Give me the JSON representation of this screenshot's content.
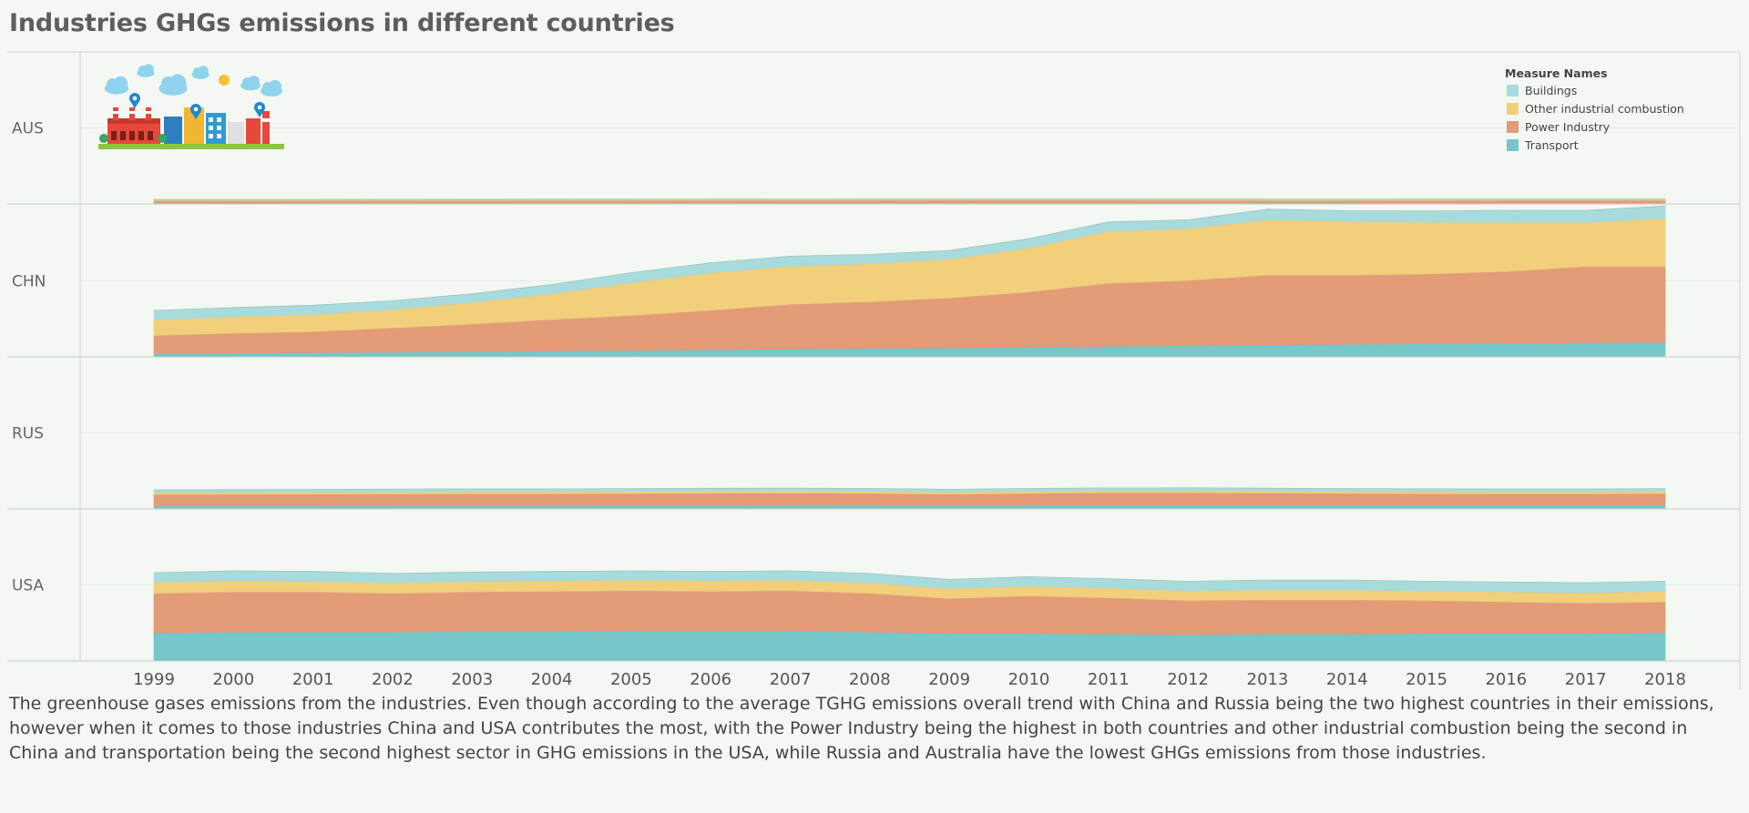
{
  "page": {
    "title": "Industries GHGs emissions in different countries",
    "caption": "The greenhouse gases emissions from the industries. Even though according to the average TGHG emissions overall trend with China and Russia being the two highest countries in their emissions, however when it comes to those industries China and USA contributes the most, with the Power Industry being the highest in both countries and other industrial combustion being the second in China and transportation being the second highest sector in GHG emissions in the USA, while Russia and Australia have the lowest GHGs emissions from those industries."
  },
  "illustration": {
    "icon": "factory-illustration-icon"
  },
  "chart_data": {
    "type": "area",
    "stacked": true,
    "x": [
      1999,
      2000,
      2001,
      2002,
      2003,
      2004,
      2005,
      2006,
      2007,
      2008,
      2009,
      2010,
      2011,
      2012,
      2013,
      2014,
      2015,
      2016,
      2017,
      2018
    ],
    "rows": [
      "AUS",
      "CHN",
      "RUS",
      "USA"
    ],
    "ylim": [
      0,
      11000
    ],
    "grid": true,
    "legend": {
      "title": "Measure Names",
      "placement": "top-right",
      "items": [
        "Buildings",
        "Other industrial combustion",
        "Power Industry",
        "Transport"
      ]
    },
    "colors": {
      "Buildings": "#a8dcdc",
      "Other industrial combustion": "#f1cf7b",
      "Power Industry": "#e39b78",
      "Transport": "#76c7ca"
    },
    "panels": [
      {
        "row": "AUS",
        "series": [
          {
            "name": "Transport",
            "values": [
              70,
              72,
              73,
              75,
              77,
              79,
              80,
              82,
              84,
              85,
              86,
              87,
              89,
              90,
              92,
              93,
              94,
              96,
              98,
              100
            ]
          },
          {
            "name": "Power Industry",
            "values": [
              170,
              172,
              175,
              178,
              180,
              183,
              186,
              189,
              190,
              192,
              195,
              195,
              192,
              188,
              180,
              176,
              178,
              180,
              178,
              175
            ]
          },
          {
            "name": "Other industrial combustion",
            "values": [
              60,
              61,
              62,
              62,
              63,
              64,
              65,
              65,
              66,
              67,
              67,
              68,
              69,
              69,
              70,
              70,
              71,
              71,
              72,
              72
            ]
          },
          {
            "name": "Buildings",
            "values": [
              30,
              30,
              30,
              31,
              31,
              31,
              31,
              32,
              32,
              32,
              32,
              32,
              33,
              33,
              33,
              33,
              33,
              34,
              34,
              34
            ]
          }
        ]
      },
      {
        "row": "CHN",
        "series": [
          {
            "name": "Transport",
            "values": [
              280,
              300,
              320,
              360,
              400,
              450,
              500,
              550,
              600,
              640,
              680,
              740,
              800,
              860,
              920,
              960,
              1000,
              1040,
              1080,
              1120
            ]
          },
          {
            "name": "Power Industry",
            "values": [
              1350,
              1500,
              1600,
              1850,
              2100,
              2400,
              2650,
              3000,
              3400,
              3550,
              3800,
              4200,
              4800,
              4950,
              5300,
              5250,
              5300,
              5450,
              5800,
              5750
            ]
          },
          {
            "name": "Other industrial combustion",
            "values": [
              1200,
              1250,
              1300,
              1400,
              1650,
              1950,
              2500,
              2850,
              2900,
              2900,
              2950,
              3350,
              3950,
              3950,
              4200,
              4100,
              3950,
              3750,
              3350,
              3650
            ]
          },
          {
            "name": "Buildings",
            "values": [
              700,
              700,
              700,
              650,
              650,
              700,
              750,
              750,
              750,
              700,
              650,
              700,
              700,
              650,
              800,
              800,
              850,
              900,
              900,
              950
            ]
          }
        ]
      },
      {
        "row": "RUS",
        "series": [
          {
            "name": "Transport",
            "values": [
              250,
              250,
              255,
              260,
              265,
              270,
              275,
              280,
              285,
              290,
              280,
              290,
              300,
              305,
              305,
              300,
              295,
              295,
              300,
              305
            ]
          },
          {
            "name": "Power Industry",
            "values": [
              850,
              860,
              870,
              880,
              890,
              890,
              900,
              920,
              920,
              900,
              850,
              900,
              930,
              930,
              900,
              880,
              870,
              850,
              850,
              870
            ]
          },
          {
            "name": "Other industrial combustion",
            "values": [
              150,
              155,
              160,
              160,
              165,
              165,
              170,
              170,
              170,
              170,
              160,
              165,
              170,
              170,
              170,
              165,
              165,
              160,
              165,
              170
            ]
          },
          {
            "name": "Buildings",
            "values": [
              200,
              200,
              200,
              200,
              200,
              200,
              200,
              200,
              200,
              200,
              200,
              200,
              200,
              200,
              200,
              200,
              200,
              200,
              200,
              200
            ]
          }
        ]
      },
      {
        "row": "USA",
        "series": [
          {
            "name": "Transport",
            "values": [
              2150,
              2200,
              2200,
              2200,
              2250,
              2250,
              2300,
              2300,
              2300,
              2200,
              2100,
              2100,
              2050,
              2000,
              2050,
              2050,
              2100,
              2100,
              2100,
              2150
            ]
          },
          {
            "name": "Power Industry",
            "values": [
              3000,
              3050,
              3050,
              2950,
              3000,
              3050,
              3050,
              3000,
              3050,
              2950,
              2650,
              2850,
              2750,
              2600,
              2600,
              2600,
              2500,
              2400,
              2300,
              2350
            ]
          },
          {
            "name": "Other industrial combustion",
            "values": [
              850,
              850,
              800,
              800,
              800,
              800,
              800,
              800,
              800,
              800,
              750,
              750,
              750,
              750,
              750,
              750,
              750,
              750,
              800,
              800
            ]
          },
          {
            "name": "Buildings",
            "values": [
              700,
              750,
              750,
              700,
              700,
              700,
              700,
              700,
              700,
              700,
              700,
              700,
              700,
              700,
              750,
              750,
              700,
              750,
              750,
              750
            ]
          }
        ]
      }
    ]
  }
}
